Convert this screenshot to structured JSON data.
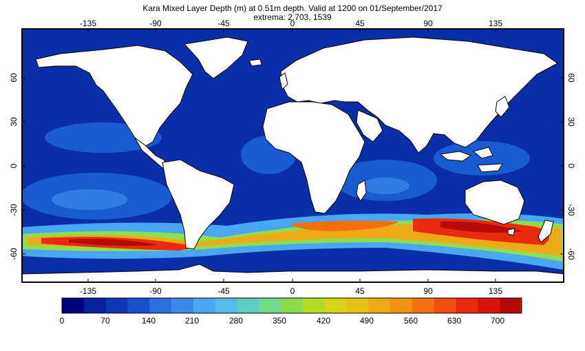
{
  "title": {
    "line1": "Kara Mixed Layer Depth (m) at 0.51m depth. Valid at 1200 on 01/September/2017",
    "line2": "extrema: 2.703, 1539"
  },
  "map": {
    "lon_ticks": [
      "-135",
      "-90",
      "-45",
      "0",
      "45",
      "90",
      "135"
    ],
    "lat_ticks": [
      "60",
      "30",
      "0",
      "-30",
      "-60"
    ],
    "projection": "equirectangular",
    "ocean_color": "#0a2ea8",
    "land_color": "#ffffff"
  },
  "colorbar": {
    "labels": [
      "0",
      "70",
      "140",
      "210",
      "280",
      "350",
      "420",
      "490",
      "560",
      "630",
      "700"
    ],
    "colors": [
      "#00007d",
      "#0a1f9c",
      "#1035b4",
      "#1a4fd0",
      "#2a6ee0",
      "#3a8aec",
      "#48a6f2",
      "#52bde8",
      "#5ccfc2",
      "#6fd88a",
      "#8fdc50",
      "#b3dd22",
      "#d6d51a",
      "#e6c218",
      "#eeaa16",
      "#f49014",
      "#f67012",
      "#f44d10",
      "#ea2a0e",
      "#d8130c",
      "#b40a0a"
    ]
  }
}
